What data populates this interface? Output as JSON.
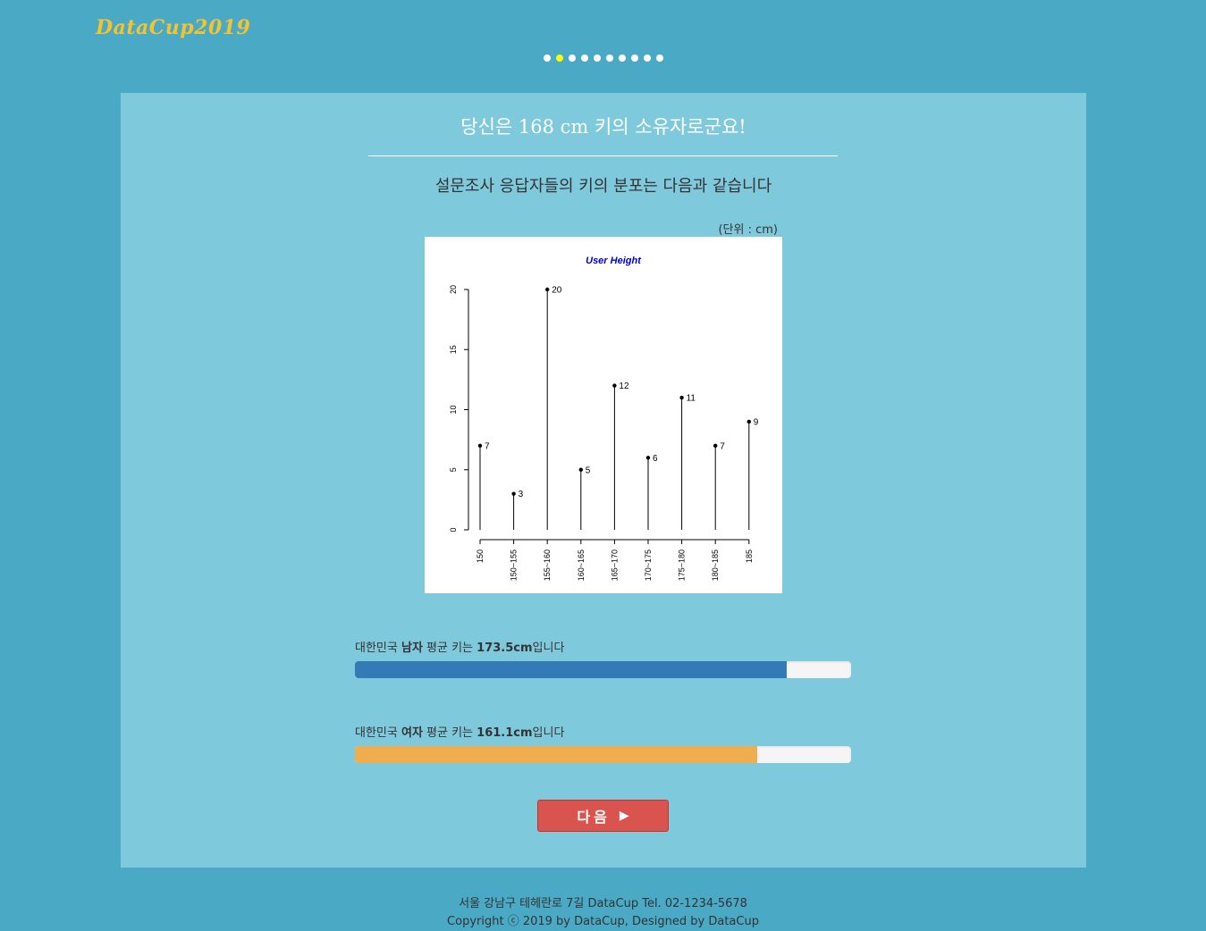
{
  "header": {
    "logo": "DataCup2019",
    "dots_total": 10,
    "dots_active_index": 1
  },
  "main": {
    "headline": "당신은 168 cm 키의 소유자로군요!",
    "subtitle": "설문조사 응답자들의 키의 분포는 다음과 같습니다",
    "unit": "(단위 : cm)",
    "male": {
      "prefix": "대한민국 ",
      "gender": "남자",
      "middle": " 평균 키는 ",
      "value": "173.5cm",
      "suffix": "입니다",
      "fill_percent": 87
    },
    "female": {
      "prefix": "대한민국 ",
      "gender": "여자",
      "middle": " 평균 키는 ",
      "value": "161.1cm",
      "suffix": "입니다",
      "fill_percent": 81
    },
    "next_button": {
      "label": "다음",
      "icon": "play-icon"
    }
  },
  "footer": {
    "address": "서울 강남구 테헤란로 7길 DataCup Tel. 02-1234-5678",
    "copyright": "Copyright ⓒ 2019 by DataCup, Designed by DataCup"
  },
  "colors": {
    "background": "#4aa9c4",
    "panel": "#7fc9dc",
    "logo": "#f4c430",
    "active_dot": "#ffff00",
    "male_bar": "#337ab7",
    "female_bar": "#f0ad4e",
    "button": "#d9534f",
    "chart_title": "#0000cc"
  },
  "chart_data": {
    "type": "lollipop",
    "title": "User Height",
    "categories": [
      "150",
      "150~155",
      "155~160",
      "160~165",
      "165~170",
      "170~175",
      "175~180",
      "180~185",
      "185"
    ],
    "values": [
      7,
      3,
      20,
      5,
      12,
      6,
      11,
      7,
      9
    ],
    "ylim": [
      0,
      20
    ],
    "yticks": [
      0,
      5,
      10,
      15,
      20
    ],
    "xlabel": "",
    "ylabel": "",
    "grid": false
  }
}
